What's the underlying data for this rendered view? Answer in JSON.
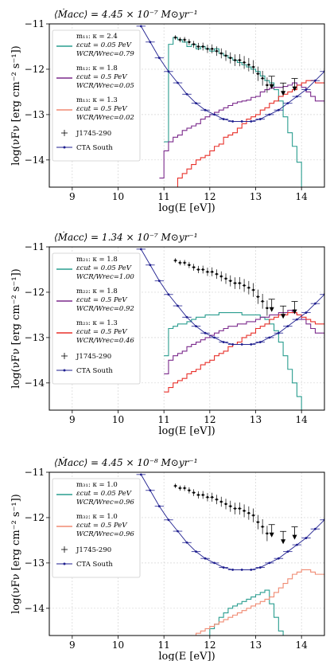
{
  "figure_xlabel": "log(E [eV])",
  "figure_ylabel": "log(νFν [erg cm⁻² s⁻¹])",
  "colors": {
    "teal": "#2a9d8f",
    "purple": "#7b2a8c",
    "salmon": "#f08a72",
    "red": "#e8302a",
    "cta": "#1f1f8f",
    "data": "#000000"
  },
  "chart_data": [
    {
      "type": "line",
      "title": "⟨Ṁacc⟩ = 4.45 × 10⁻⁷ M⊙yr⁻¹",
      "xlim": [
        8.5,
        14.5
      ],
      "ylim": [
        -14.6,
        -11.0
      ],
      "xticks": [
        "9",
        "10",
        "11",
        "12",
        "13",
        "14"
      ],
      "yticks": [
        "−11",
        "−12",
        "−13",
        "−14"
      ],
      "legend": [
        {
          "color": "teal",
          "line1": "m₁₁: κ = 2.4",
          "line2": "εcut = 0.05 PeV",
          "line3": "WCR/Wrec=0.79"
        },
        {
          "color": "purple",
          "line1": "m₁₂: κ = 1.8",
          "line2": "εcut = 0.5 PeV",
          "line3": "WCR/Wrec=0.05"
        },
        {
          "color": "salmon",
          "line1": "m₁₃: κ = 1.3",
          "line2": "εcut = 0.5 PeV",
          "line3": "WCR/Wrec=0.02"
        },
        {
          "color": "data",
          "line1": "J1745-290"
        },
        {
          "color": "cta",
          "line1": "CTA South"
        }
      ],
      "series": [
        {
          "color": "teal",
          "x": [
            11.0,
            11.1,
            11.2,
            11.3,
            11.4,
            11.5,
            11.6,
            11.7,
            11.8,
            11.9,
            12.0,
            12.1,
            12.2,
            12.3,
            12.4,
            12.5,
            12.6,
            12.7,
            12.8,
            12.9,
            13.0,
            13.1,
            13.2,
            13.3,
            13.4,
            13.5,
            13.6,
            13.7,
            13.8,
            13.9,
            14.0,
            14.1,
            14.2,
            14.3
          ],
          "y": [
            -13.6,
            -11.45,
            -11.3,
            -11.35,
            -11.4,
            -11.5,
            -11.45,
            -11.55,
            -11.5,
            -11.55,
            -11.6,
            -11.55,
            -11.65,
            -11.7,
            -11.75,
            -11.8,
            -11.85,
            -11.9,
            -11.95,
            -12.0,
            -12.05,
            -12.15,
            -12.25,
            -12.3,
            -12.45,
            -12.7,
            -13.05,
            -13.4,
            -13.7,
            -14.05,
            -14.6,
            -14.6,
            -14.6,
            -14.6
          ]
        },
        {
          "color": "purple",
          "x": [
            10.9,
            11.0,
            11.1,
            11.2,
            11.3,
            11.4,
            11.5,
            11.6,
            11.7,
            11.8,
            11.9,
            12.0,
            12.1,
            12.2,
            12.3,
            12.4,
            12.5,
            12.6,
            12.7,
            12.8,
            12.9,
            13.0,
            13.1,
            13.2,
            13.3,
            13.4,
            13.5,
            13.6,
            13.7,
            13.8,
            13.9,
            14.0,
            14.1,
            14.2,
            14.3,
            14.5
          ],
          "y": [
            -14.4,
            -13.8,
            -13.6,
            -13.5,
            -13.45,
            -13.35,
            -13.3,
            -13.25,
            -13.2,
            -13.1,
            -13.05,
            -13.0,
            -12.95,
            -12.9,
            -12.85,
            -12.8,
            -12.75,
            -12.72,
            -12.7,
            -12.68,
            -12.62,
            -12.6,
            -12.5,
            -12.45,
            -12.42,
            -12.4,
            -12.4,
            -12.38,
            -12.35,
            -12.3,
            -12.35,
            -12.4,
            -12.5,
            -12.6,
            -12.7,
            -12.75
          ]
        },
        {
          "color": "red",
          "x": [
            11.2,
            11.3,
            11.4,
            11.5,
            11.6,
            11.7,
            11.8,
            11.9,
            12.0,
            12.1,
            12.2,
            12.3,
            12.4,
            12.5,
            12.6,
            12.7,
            12.8,
            12.9,
            13.0,
            13.1,
            13.2,
            13.3,
            13.4,
            13.5,
            13.6,
            13.7,
            13.8,
            13.9,
            14.0,
            14.1,
            14.2,
            14.3,
            14.5
          ],
          "y": [
            -14.6,
            -14.4,
            -14.3,
            -14.2,
            -14.1,
            -14.0,
            -13.95,
            -13.9,
            -13.8,
            -13.7,
            -13.65,
            -13.5,
            -13.45,
            -13.4,
            -13.3,
            -13.2,
            -13.1,
            -13.05,
            -13.0,
            -12.9,
            -12.85,
            -12.75,
            -12.7,
            -12.6,
            -12.55,
            -12.5,
            -12.45,
            -12.35,
            -12.3,
            -12.25,
            -12.25,
            -12.3,
            -12.3
          ]
        }
      ],
      "cta": {
        "x": [
          10.5,
          10.7,
          10.9,
          11.1,
          11.3,
          11.5,
          11.7,
          11.9,
          12.1,
          12.3,
          12.5,
          12.7,
          12.9,
          13.1,
          13.3,
          13.5,
          13.7,
          13.9,
          14.1,
          14.3,
          14.5
        ],
        "y": [
          -11.05,
          -11.4,
          -11.75,
          -12.05,
          -12.3,
          -12.55,
          -12.75,
          -12.9,
          -13.0,
          -13.1,
          -13.15,
          -13.15,
          -13.15,
          -13.1,
          -13.0,
          -12.9,
          -12.75,
          -12.6,
          -12.45,
          -12.25,
          -12.05
        ]
      },
      "points": {
        "x": [
          11.25,
          11.35,
          11.45,
          11.55,
          11.65,
          11.75,
          11.85,
          11.95,
          12.05,
          12.15,
          12.25,
          12.35,
          12.45,
          12.55,
          12.65,
          12.75,
          12.85,
          12.95,
          13.05,
          13.15,
          13.25
        ],
        "y": [
          -11.3,
          -11.35,
          -11.35,
          -11.4,
          -11.45,
          -11.5,
          -11.5,
          -11.55,
          -11.55,
          -11.6,
          -11.65,
          -11.7,
          -11.75,
          -11.8,
          -11.8,
          -11.85,
          -11.9,
          -11.95,
          -12.1,
          -12.2,
          -12.35
        ]
      },
      "upper_limits": {
        "x": [
          13.35,
          13.6,
          13.85
        ],
        "y": [
          -12.4,
          -12.55,
          -12.45
        ]
      }
    },
    {
      "type": "line",
      "title": "⟨Ṁacc⟩ = 1.34 × 10⁻⁷ M⊙yr⁻¹",
      "xlim": [
        8.5,
        14.5
      ],
      "ylim": [
        -14.6,
        -11.0
      ],
      "xticks": [
        "9",
        "10",
        "11",
        "12",
        "13",
        "14"
      ],
      "yticks": [
        "−11",
        "−12",
        "−13",
        "−14"
      ],
      "legend": [
        {
          "color": "teal",
          "line1": "m₂₁: κ = 1.8",
          "line2": "εcut = 0.05 PeV",
          "line3": "WCR/Wrec=1.00"
        },
        {
          "color": "purple",
          "line1": "m₂₂: κ = 1.8",
          "line2": "εcut = 0.5 PeV",
          "line3": "WCR/Wrec=0.92"
        },
        {
          "color": "red",
          "line1": "m₂₃: κ = 1.3",
          "line2": "εcut = 0.5 PeV",
          "line3": "WCR/Wrec=0.46"
        },
        {
          "color": "data",
          "line1": "J1745-290"
        },
        {
          "color": "cta",
          "line1": "CTA South"
        }
      ],
      "series": [
        {
          "color": "teal",
          "x": [
            11.0,
            11.1,
            11.2,
            11.3,
            11.4,
            11.5,
            11.6,
            11.7,
            11.8,
            11.9,
            12.0,
            12.1,
            12.2,
            12.3,
            12.4,
            12.5,
            12.6,
            12.7,
            12.8,
            12.9,
            13.0,
            13.1,
            13.2,
            13.3,
            13.4,
            13.5,
            13.6,
            13.7,
            13.8,
            13.9,
            14.0,
            14.1
          ],
          "y": [
            -13.4,
            -12.8,
            -12.75,
            -12.7,
            -12.7,
            -12.65,
            -12.6,
            -12.55,
            -12.55,
            -12.5,
            -12.5,
            -12.5,
            -12.45,
            -12.45,
            -12.45,
            -12.45,
            -12.45,
            -12.5,
            -12.5,
            -12.5,
            -12.5,
            -12.55,
            -12.6,
            -12.7,
            -12.85,
            -13.1,
            -13.4,
            -13.7,
            -14.0,
            -14.3,
            -14.6,
            -14.6
          ]
        },
        {
          "color": "purple",
          "x": [
            11.0,
            11.1,
            11.2,
            11.3,
            11.4,
            11.5,
            11.6,
            11.7,
            11.8,
            11.9,
            12.0,
            12.1,
            12.2,
            12.3,
            12.4,
            12.5,
            12.6,
            12.7,
            12.8,
            12.9,
            13.0,
            13.1,
            13.2,
            13.3,
            13.4,
            13.5,
            13.6,
            13.7,
            13.8,
            13.9,
            14.0,
            14.1,
            14.2,
            14.3,
            14.5
          ],
          "y": [
            -13.8,
            -13.5,
            -13.4,
            -13.35,
            -13.3,
            -13.2,
            -13.15,
            -13.1,
            -13.05,
            -13.0,
            -12.95,
            -12.9,
            -12.85,
            -12.8,
            -12.75,
            -12.75,
            -12.7,
            -12.7,
            -12.65,
            -12.65,
            -12.6,
            -12.55,
            -12.55,
            -12.5,
            -12.5,
            -12.45,
            -12.45,
            -12.4,
            -12.45,
            -12.5,
            -12.6,
            -12.7,
            -12.8,
            -12.9,
            -12.95
          ]
        },
        {
          "color": "red",
          "x": [
            11.0,
            11.1,
            11.2,
            11.3,
            11.4,
            11.5,
            11.6,
            11.7,
            11.8,
            11.9,
            12.0,
            12.1,
            12.2,
            12.3,
            12.4,
            12.5,
            12.6,
            12.7,
            12.8,
            12.9,
            13.0,
            13.1,
            13.2,
            13.3,
            13.4,
            13.5,
            13.6,
            13.7,
            13.8,
            13.9,
            14.0,
            14.1,
            14.2,
            14.3,
            14.5
          ],
          "y": [
            -14.2,
            -14.1,
            -14.0,
            -13.95,
            -13.9,
            -13.8,
            -13.75,
            -13.7,
            -13.6,
            -13.55,
            -13.5,
            -13.4,
            -13.35,
            -13.3,
            -13.2,
            -13.15,
            -13.1,
            -13.0,
            -12.95,
            -12.9,
            -12.8,
            -12.75,
            -12.7,
            -12.6,
            -12.55,
            -12.5,
            -12.5,
            -12.45,
            -12.45,
            -12.5,
            -12.55,
            -12.6,
            -12.65,
            -12.7,
            -12.7
          ]
        }
      ],
      "cta": {
        "x": [
          10.5,
          10.7,
          10.9,
          11.1,
          11.3,
          11.5,
          11.7,
          11.9,
          12.1,
          12.3,
          12.5,
          12.7,
          12.9,
          13.1,
          13.3,
          13.5,
          13.7,
          13.9,
          14.1,
          14.3,
          14.5
        ],
        "y": [
          -11.05,
          -11.4,
          -11.75,
          -12.05,
          -12.3,
          -12.55,
          -12.75,
          -12.9,
          -13.0,
          -13.1,
          -13.15,
          -13.15,
          -13.15,
          -13.1,
          -13.0,
          -12.9,
          -12.75,
          -12.6,
          -12.45,
          -12.25,
          -12.05
        ]
      },
      "points": {
        "x": [
          11.25,
          11.35,
          11.45,
          11.55,
          11.65,
          11.75,
          11.85,
          11.95,
          12.05,
          12.15,
          12.25,
          12.35,
          12.45,
          12.55,
          12.65,
          12.75,
          12.85,
          12.95,
          13.05,
          13.15,
          13.25
        ],
        "y": [
          -11.3,
          -11.35,
          -11.35,
          -11.4,
          -11.45,
          -11.5,
          -11.5,
          -11.55,
          -11.55,
          -11.6,
          -11.65,
          -11.7,
          -11.75,
          -11.8,
          -11.8,
          -11.85,
          -11.9,
          -11.95,
          -12.1,
          -12.2,
          -12.35
        ]
      },
      "upper_limits": {
        "x": [
          13.35,
          13.6,
          13.85
        ],
        "y": [
          -12.4,
          -12.55,
          -12.45
        ]
      }
    },
    {
      "type": "line",
      "title": "⟨Ṁacc⟩ = 4.45 × 10⁻⁸ M⊙yr⁻¹",
      "xlim": [
        8.5,
        14.5
      ],
      "ylim": [
        -14.6,
        -11.0
      ],
      "xticks": [
        "9",
        "10",
        "11",
        "12",
        "13",
        "14"
      ],
      "yticks": [
        "−11",
        "−12",
        "−13",
        "−14"
      ],
      "legend": [
        {
          "color": "teal",
          "line1": "m₃₁: κ = 1.0",
          "line2": "εcut = 0.05 PeV",
          "line3": "WCR/Wrec=0.96"
        },
        {
          "color": "salmon",
          "line1": "m₃₂: κ = 1.0",
          "line2": "εcut = 0.5 PeV",
          "line3": "WCR/Wrec=0.96"
        },
        {
          "color": "data",
          "line1": "J1745-290"
        },
        {
          "color": "cta",
          "line1": "CTA South"
        }
      ],
      "series": [
        {
          "color": "teal",
          "x": [
            11.9,
            12.0,
            12.1,
            12.2,
            12.3,
            12.4,
            12.5,
            12.6,
            12.7,
            12.8,
            12.9,
            13.0,
            13.1,
            13.2,
            13.3,
            13.4,
            13.5,
            13.6,
            13.7
          ],
          "y": [
            -14.6,
            -14.45,
            -14.35,
            -14.2,
            -14.1,
            -14.0,
            -13.95,
            -13.9,
            -13.85,
            -13.8,
            -13.75,
            -13.7,
            -13.65,
            -13.6,
            -13.9,
            -14.2,
            -14.5,
            -14.6,
            -14.6
          ]
        },
        {
          "color": "salmon",
          "x": [
            11.6,
            11.7,
            11.8,
            11.9,
            12.0,
            12.1,
            12.2,
            12.3,
            12.4,
            12.5,
            12.6,
            12.7,
            12.8,
            12.9,
            13.0,
            13.1,
            13.2,
            13.3,
            13.4,
            13.5,
            13.6,
            13.7,
            13.8,
            13.9,
            14.0,
            14.1,
            14.2,
            14.3,
            14.5
          ],
          "y": [
            -14.6,
            -14.55,
            -14.5,
            -14.45,
            -14.4,
            -14.35,
            -14.3,
            -14.25,
            -14.2,
            -14.15,
            -14.1,
            -14.05,
            -14.0,
            -13.95,
            -13.9,
            -13.85,
            -13.8,
            -13.75,
            -13.65,
            -13.55,
            -13.45,
            -13.35,
            -13.25,
            -13.2,
            -13.15,
            -13.15,
            -13.2,
            -13.25,
            -13.3
          ]
        }
      ],
      "cta": {
        "x": [
          10.5,
          10.7,
          10.9,
          11.1,
          11.3,
          11.5,
          11.7,
          11.9,
          12.1,
          12.3,
          12.5,
          12.7,
          12.9,
          13.1,
          13.3,
          13.5,
          13.7,
          13.9,
          14.1,
          14.3,
          14.5
        ],
        "y": [
          -11.05,
          -11.4,
          -11.75,
          -12.05,
          -12.3,
          -12.55,
          -12.75,
          -12.9,
          -13.0,
          -13.1,
          -13.15,
          -13.15,
          -13.15,
          -13.1,
          -13.0,
          -12.9,
          -12.75,
          -12.6,
          -12.45,
          -12.25,
          -12.05
        ]
      },
      "points": {
        "x": [
          11.25,
          11.35,
          11.45,
          11.55,
          11.65,
          11.75,
          11.85,
          11.95,
          12.05,
          12.15,
          12.25,
          12.35,
          12.45,
          12.55,
          12.65,
          12.75,
          12.85,
          12.95,
          13.05,
          13.15,
          13.25
        ],
        "y": [
          -11.3,
          -11.35,
          -11.35,
          -11.4,
          -11.45,
          -11.5,
          -11.5,
          -11.55,
          -11.55,
          -11.6,
          -11.65,
          -11.7,
          -11.75,
          -11.8,
          -11.8,
          -11.85,
          -11.9,
          -11.95,
          -12.1,
          -12.2,
          -12.35
        ]
      },
      "upper_limits": {
        "x": [
          13.35,
          13.6,
          13.85
        ],
        "y": [
          -12.4,
          -12.55,
          -12.45
        ]
      }
    }
  ]
}
